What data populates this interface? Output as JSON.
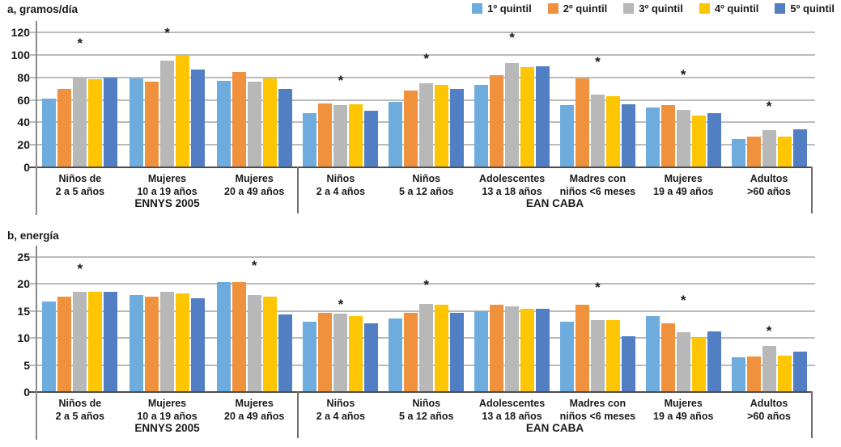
{
  "page_background": "#ffffff",
  "legend": [
    {
      "label": "1º quintil",
      "color": "#6FACDE"
    },
    {
      "label": "2º quintil",
      "color": "#F0913E"
    },
    {
      "label": "3º quintil",
      "color": "#B8B8B8"
    },
    {
      "label": "4º quintil",
      "color": "#FEC502"
    },
    {
      "label": "5º quintil",
      "color": "#527FC4"
    }
  ],
  "significance_marker": "*",
  "chart_data": [
    {
      "id": "a",
      "type": "bar",
      "title": "a, gramos/día",
      "ylabel": "gramos/día",
      "ylim": [
        0,
        120
      ],
      "yticks": [
        0,
        20,
        40,
        60,
        80,
        100,
        120
      ],
      "grid": true,
      "legend_position": "top-right",
      "series_names": [
        "1º quintil",
        "2º quintil",
        "3º quintil",
        "4º quintil",
        "5º quintil"
      ],
      "sections": [
        {
          "label": "ENNYS 2005",
          "groups": [
            {
              "label": [
                "Niños de",
                "2 a 5 años"
              ],
              "values": [
                61,
                70,
                80,
                78,
                80
              ],
              "asterisk": 108
            },
            {
              "label": [
                "Mujeres",
                "10 a 19 años"
              ],
              "values": [
                79,
                76,
                95,
                99,
                87
              ],
              "asterisk": 117
            },
            {
              "label": [
                "Mujeres",
                "20 a 49 años"
              ],
              "values": [
                77,
                85,
                76,
                79,
                70
              ],
              "asterisk": null
            }
          ]
        },
        {
          "label": "EAN CABA",
          "groups": [
            {
              "label": [
                "Niños",
                "2 a 4 años"
              ],
              "values": [
                48,
                57,
                55,
                56,
                50
              ],
              "asterisk": 75
            },
            {
              "label": [
                "Niños",
                "5 a 12 años"
              ],
              "values": [
                58,
                68,
                75,
                73,
                70
              ],
              "asterisk": 94
            },
            {
              "label": [
                "Adolescentes",
                "13 a 18 años"
              ],
              "values": [
                73,
                82,
                93,
                89,
                90
              ],
              "asterisk": 113
            },
            {
              "label": [
                "Madres con",
                "niños <6 meses"
              ],
              "values": [
                55,
                79,
                65,
                63,
                56
              ],
              "asterisk": 91
            },
            {
              "label": [
                "Mujeres",
                "19 a 49 años"
              ],
              "values": [
                53,
                55,
                51,
                46,
                48
              ],
              "asterisk": 80
            },
            {
              "label": [
                "Adultos",
                ">60 años"
              ],
              "values": [
                25,
                27,
                33,
                27,
                34
              ],
              "asterisk": 52
            }
          ]
        }
      ]
    },
    {
      "id": "b",
      "type": "bar",
      "title": "b, energía",
      "ylabel": "energía",
      "ylim": [
        0,
        25
      ],
      "yticks": [
        0,
        5,
        10,
        15,
        20,
        25
      ],
      "grid": true,
      "legend_position": "none",
      "series_names": [
        "1º quintil",
        "2º quintil",
        "3º quintil",
        "4º quintil",
        "5º quintil"
      ],
      "sections": [
        {
          "label": "ENNYS 2005",
          "groups": [
            {
              "label": [
                "Niños de",
                "2 a 5 años"
              ],
              "values": [
                16.8,
                17.7,
                18.5,
                18.5,
                18.6
              ],
              "asterisk": 22.3
            },
            {
              "label": [
                "Mujeres",
                "10 a 19 años"
              ],
              "values": [
                17.9,
                17.7,
                18.5,
                18.3,
                17.4
              ],
              "asterisk": null
            },
            {
              "label": [
                "Mujeres",
                "20 a 49 años"
              ],
              "values": [
                20.3,
                20.4,
                17.9,
                17.7,
                14.4
              ],
              "asterisk": 22.9
            }
          ]
        },
        {
          "label": "EAN CABA",
          "groups": [
            {
              "label": [
                "Niños",
                "2 a 4 años"
              ],
              "values": [
                13.1,
                14.7,
                14.5,
                14.1,
                12.8
              ],
              "asterisk": 15.7
            },
            {
              "label": [
                "Niños",
                "5 a 12 años"
              ],
              "values": [
                13.6,
                14.7,
                16.3,
                16.1,
                14.7
              ],
              "asterisk": 19.3
            },
            {
              "label": [
                "Adolescentes",
                "13 a 18 años"
              ],
              "values": [
                15.0,
                16.1,
                15.9,
                15.4,
                15.4
              ],
              "asterisk": null
            },
            {
              "label": [
                "Madres con",
                "niños <6 meses"
              ],
              "values": [
                13.0,
                16.1,
                13.4,
                13.3,
                10.4
              ],
              "asterisk": 18.9
            },
            {
              "label": [
                "Mujeres",
                "19 a 49 años"
              ],
              "values": [
                14.0,
                12.8,
                11.1,
                10.1,
                11.2
              ],
              "asterisk": 16.5
            },
            {
              "label": [
                "Adultos",
                ">60 años"
              ],
              "values": [
                6.4,
                6.6,
                8.6,
                6.7,
                7.5
              ],
              "asterisk": 10.8
            }
          ]
        }
      ]
    }
  ]
}
